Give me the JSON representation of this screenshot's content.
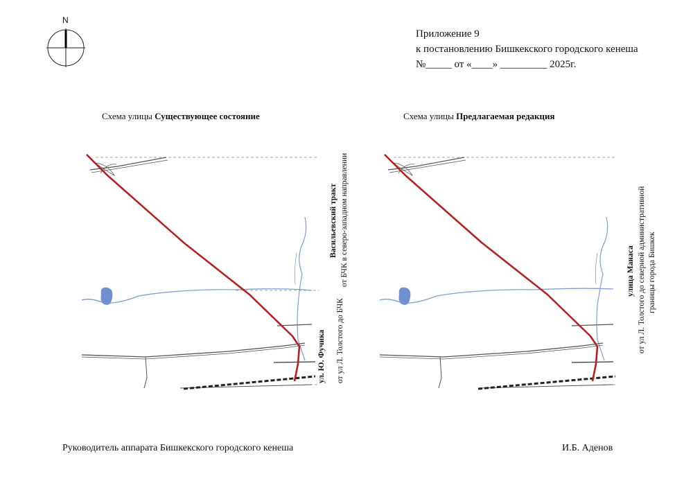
{
  "compass": {
    "label": "N"
  },
  "header": {
    "line1": "Приложение    9",
    "line2": "к постановлению  Бишкекского городского кенеша",
    "line3": "№_____ от «____» _________ 2025г."
  },
  "left_scheme": {
    "title_prefix": "Схема улицы ",
    "title_bold": "Существующее состояние",
    "upper_street_name": "Васильевский тракт",
    "upper_street_desc": "от  БЧК в северо-западном направлении",
    "lower_street_name": "ул. Ю. Фучика",
    "lower_street_desc": "от ул Л. Толстого до БЧК"
  },
  "right_scheme": {
    "title_prefix": "Схема улицы ",
    "title_bold": "Предлагаемая редакция",
    "street_name": "улица Манаса",
    "street_desc_1": "от ул Л. Толстого до северной административной",
    "street_desc_2": "границы города Бишкек"
  },
  "footer": {
    "left": "Руководитель аппарата Бишкекского городского кенеша",
    "right": "И.Б. Аденов"
  },
  "colors": {
    "route": "#b22222",
    "road": "#555555",
    "water": "#7f9fd0",
    "rail": "#222222",
    "guide": "#888888"
  }
}
